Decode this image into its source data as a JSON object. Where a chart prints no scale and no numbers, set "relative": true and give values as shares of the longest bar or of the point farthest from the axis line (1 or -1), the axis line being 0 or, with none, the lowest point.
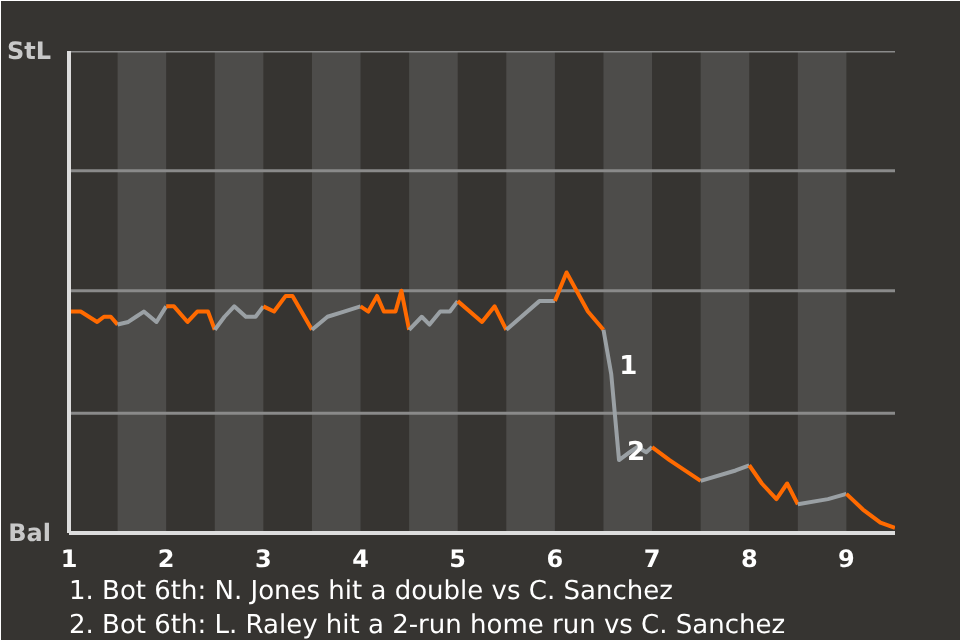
{
  "chart_data": {
    "type": "line",
    "relative": true,
    "xlim": [
      1,
      9.5
    ],
    "xticks": [
      {
        "value": 1,
        "label": "1"
      },
      {
        "value": 2,
        "label": "2"
      },
      {
        "value": 3,
        "label": "3"
      },
      {
        "value": 4,
        "label": "4"
      },
      {
        "value": 5,
        "label": "5"
      },
      {
        "value": 6,
        "label": "6"
      },
      {
        "value": 7,
        "label": "7"
      },
      {
        "value": 8,
        "label": "8"
      },
      {
        "value": 9,
        "label": "9"
      }
    ],
    "marker": "none",
    "line_style": "solid",
    "series": [
      {
        "color": "#ff6a00",
        "x": [
          1,
          1.12,
          1.29,
          1.36,
          1.43,
          1.5
        ],
        "values": [
          0.85,
          0.85,
          0.81,
          0.83,
          0.83,
          0.8
        ]
      },
      {
        "color": "#9aa0a4",
        "x": [
          1.5,
          1.61,
          1.69,
          1.77,
          1.9,
          2
        ],
        "values": [
          0.8,
          0.81,
          0.83,
          0.85,
          0.81,
          0.87
        ]
      },
      {
        "color": "#ff6a00",
        "x": [
          2,
          2.08,
          2.22,
          2.32,
          2.43,
          2.5
        ],
        "values": [
          0.87,
          0.87,
          0.81,
          0.85,
          0.85,
          0.78
        ]
      },
      {
        "color": "#9aa0a4",
        "x": [
          2.5,
          2.6,
          2.7,
          2.82,
          2.92,
          3
        ],
        "values": [
          0.78,
          0.83,
          0.87,
          0.83,
          0.83,
          0.87
        ]
      },
      {
        "color": "#ff6a00",
        "x": [
          3,
          3.11,
          3.23,
          3.3,
          3.5
        ],
        "values": [
          0.87,
          0.85,
          0.91,
          0.91,
          0.78
        ]
      },
      {
        "color": "#9aa0a4",
        "x": [
          3.5,
          3.66,
          3.83,
          4
        ],
        "values": [
          0.78,
          0.83,
          0.85,
          0.87
        ]
      },
      {
        "color": "#ff6a00",
        "x": [
          4,
          4.08,
          4.17,
          4.24,
          4.36,
          4.42,
          4.5
        ],
        "values": [
          0.87,
          0.85,
          0.91,
          0.85,
          0.85,
          0.93,
          0.78
        ]
      },
      {
        "color": "#9aa0a4",
        "x": [
          4.5,
          4.63,
          4.71,
          4.82,
          4.86,
          4.92,
          5
        ],
        "values": [
          0.78,
          0.83,
          0.8,
          0.85,
          0.85,
          0.85,
          0.89
        ]
      },
      {
        "color": "#ff6a00",
        "x": [
          5,
          5.25,
          5.38,
          5.5
        ],
        "values": [
          0.89,
          0.81,
          0.87,
          0.78
        ]
      },
      {
        "color": "#9aa0a4",
        "x": [
          5.5,
          5.84,
          6
        ],
        "values": [
          0.78,
          0.89,
          0.89
        ]
      },
      {
        "color": "#ff6a00",
        "x": [
          6,
          6.12,
          6.34,
          6.5
        ],
        "values": [
          0.89,
          1,
          0.85,
          0.78
        ]
      },
      {
        "color": "#9aa0a4",
        "x": [
          6.5,
          6.58,
          6.66,
          6.77,
          6.85,
          6.94,
          7
        ],
        "values": [
          0.78,
          0.61,
          0.28,
          0.31,
          0.33,
          0.31,
          0.33
        ]
      },
      {
        "color": "#ff6a00",
        "x": [
          7,
          7.18,
          7.5
        ],
        "values": [
          0.33,
          0.28,
          0.2
        ]
      },
      {
        "color": "#9aa0a4",
        "x": [
          7.5,
          7.86,
          8
        ],
        "values": [
          0.2,
          0.24,
          0.26
        ]
      },
      {
        "color": "#ff6a00",
        "x": [
          8,
          8.13,
          8.28,
          8.39,
          8.5
        ],
        "values": [
          0.26,
          0.19,
          0.13,
          0.19,
          0.11
        ]
      },
      {
        "color": "#9aa0a4",
        "x": [
          8.5,
          8.81,
          9
        ],
        "values": [
          0.11,
          0.13,
          0.15
        ]
      },
      {
        "color": "#ff6a00",
        "x": [
          9,
          9.17,
          9.35,
          9.5
        ],
        "values": [
          0.15,
          0.09,
          0.04,
          0.02
        ]
      }
    ],
    "ref_lines": [
      {
        "axis": "y",
        "value": 0.46,
        "label": null,
        "color": "#8a8a8a"
      },
      {
        "axis": "y",
        "value": 0.93,
        "label": null,
        "color": "#8a8a8a"
      },
      {
        "axis": "y",
        "value": 1.39,
        "label": null,
        "color": "#8a8a8a"
      },
      {
        "axis": "y",
        "value": 1.85,
        "label": "StL",
        "color": "#8a8a8a"
      }
    ],
    "bands": [
      {
        "axis": "x",
        "from": 1.5,
        "to": 2,
        "color": "#4d4c4a"
      },
      {
        "axis": "x",
        "from": 2.5,
        "to": 3,
        "color": "#4d4c4a"
      },
      {
        "axis": "x",
        "from": 3.5,
        "to": 4,
        "color": "#4d4c4a"
      },
      {
        "axis": "x",
        "from": 4.5,
        "to": 5,
        "color": "#4d4c4a"
      },
      {
        "axis": "x",
        "from": 5.5,
        "to": 6,
        "color": "#4d4c4a"
      },
      {
        "axis": "x",
        "from": 6.5,
        "to": 7,
        "color": "#4d4c4a"
      },
      {
        "axis": "x",
        "from": 7.5,
        "to": 8,
        "color": "#4d4c4a"
      },
      {
        "axis": "x",
        "from": 8.5,
        "to": 9,
        "color": "#4d4c4a"
      }
    ],
    "annotations": [
      {
        "text": "1",
        "x": 6.58,
        "y": 0.61
      },
      {
        "text": "2",
        "x": 6.66,
        "y": 0.28
      },
      "Bal",
      "1. Bot 6th: N. Jones hit a double vs C. Sanchez",
      "2. Bot 6th: L. Raley hit a 2-run home run vs C. Sanchez"
    ]
  }
}
